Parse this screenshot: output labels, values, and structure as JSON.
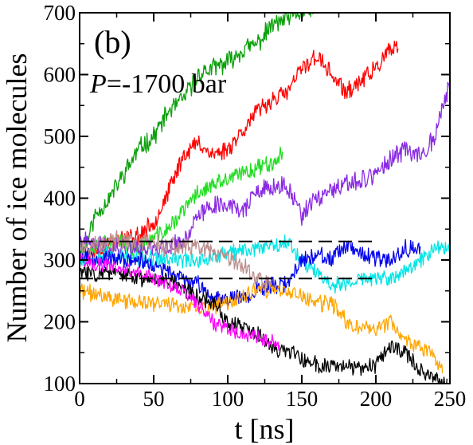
{
  "chart_data": {
    "type": "line",
    "panel_label": "(b)",
    "annotation": {
      "italic_part": "P",
      "rest": "=-1700 bar"
    },
    "xlabel": "t [ns]",
    "ylabel": "Number of ice molecules",
    "xlim": [
      0,
      250
    ],
    "ylim": [
      100,
      700
    ],
    "xticks": [
      "0",
      "50",
      "100",
      "150",
      "200",
      "250"
    ],
    "yticks": [
      "100",
      "200",
      "300",
      "400",
      "500",
      "600",
      "700"
    ],
    "xtick_values": [
      0,
      50,
      100,
      150,
      200,
      250
    ],
    "ytick_values": [
      100,
      200,
      300,
      400,
      500,
      600,
      700
    ],
    "grid": false,
    "series": [
      {
        "color": "#0aa00a",
        "noise": 14,
        "seed": 11,
        "points": [
          [
            0,
            300
          ],
          [
            5,
            330
          ],
          [
            10,
            370
          ],
          [
            20,
            400
          ],
          [
            30,
            440
          ],
          [
            40,
            480
          ],
          [
            50,
            500
          ],
          [
            60,
            540
          ],
          [
            70,
            560
          ],
          [
            80,
            600
          ],
          [
            90,
            610
          ],
          [
            100,
            620
          ],
          [
            110,
            640
          ],
          [
            120,
            650
          ],
          [
            130,
            680
          ],
          [
            140,
            690
          ],
          [
            150,
            700
          ],
          [
            155,
            705
          ],
          [
            165,
            710
          ]
        ]
      },
      {
        "color": "#ff0000",
        "noise": 13,
        "seed": 23,
        "points": [
          [
            0,
            300
          ],
          [
            20,
            330
          ],
          [
            40,
            340
          ],
          [
            50,
            360
          ],
          [
            60,
            410
          ],
          [
            70,
            470
          ],
          [
            80,
            490
          ],
          [
            90,
            470
          ],
          [
            100,
            480
          ],
          [
            110,
            510
          ],
          [
            120,
            540
          ],
          [
            130,
            560
          ],
          [
            140,
            570
          ],
          [
            145,
            590
          ],
          [
            150,
            610
          ],
          [
            160,
            630
          ],
          [
            170,
            600
          ],
          [
            180,
            570
          ],
          [
            190,
            590
          ],
          [
            200,
            610
          ],
          [
            210,
            640
          ],
          [
            215,
            640
          ]
        ]
      },
      {
        "color": "#22dd22",
        "noise": 13,
        "seed": 37,
        "points": [
          [
            0,
            310
          ],
          [
            20,
            330
          ],
          [
            40,
            320
          ],
          [
            60,
            350
          ],
          [
            70,
            380
          ],
          [
            80,
            410
          ],
          [
            90,
            420
          ],
          [
            100,
            430
          ],
          [
            110,
            440
          ],
          [
            120,
            450
          ],
          [
            130,
            460
          ],
          [
            137,
            470
          ]
        ]
      },
      {
        "color": "#8a2be2",
        "noise": 14,
        "seed": 41,
        "points": [
          [
            0,
            330
          ],
          [
            20,
            320
          ],
          [
            40,
            320
          ],
          [
            60,
            320
          ],
          [
            70,
            330
          ],
          [
            80,
            370
          ],
          [
            90,
            390
          ],
          [
            100,
            390
          ],
          [
            110,
            380
          ],
          [
            120,
            410
          ],
          [
            140,
            420
          ],
          [
            150,
            370
          ],
          [
            160,
            400
          ],
          [
            170,
            410
          ],
          [
            180,
            420
          ],
          [
            190,
            430
          ],
          [
            200,
            440
          ],
          [
            210,
            460
          ],
          [
            220,
            480
          ],
          [
            230,
            470
          ],
          [
            240,
            500
          ],
          [
            245,
            550
          ],
          [
            250,
            580
          ]
        ]
      },
      {
        "color": "#00e5e5",
        "noise": 12,
        "seed": 53,
        "points": [
          [
            0,
            300
          ],
          [
            20,
            310
          ],
          [
            40,
            300
          ],
          [
            60,
            300
          ],
          [
            80,
            300
          ],
          [
            100,
            310
          ],
          [
            120,
            320
          ],
          [
            140,
            330
          ],
          [
            150,
            300
          ],
          [
            160,
            280
          ],
          [
            170,
            260
          ],
          [
            180,
            260
          ],
          [
            190,
            270
          ],
          [
            200,
            270
          ],
          [
            210,
            270
          ],
          [
            220,
            280
          ],
          [
            230,
            300
          ],
          [
            240,
            320
          ],
          [
            250,
            320
          ]
        ]
      },
      {
        "color": "#0000ee",
        "noise": 12,
        "seed": 67,
        "points": [
          [
            0,
            310
          ],
          [
            20,
            300
          ],
          [
            40,
            300
          ],
          [
            60,
            280
          ],
          [
            80,
            260
          ],
          [
            90,
            240
          ],
          [
            100,
            240
          ],
          [
            110,
            240
          ],
          [
            120,
            250
          ],
          [
            130,
            260
          ],
          [
            140,
            260
          ],
          [
            150,
            300
          ],
          [
            160,
            310
          ],
          [
            170,
            300
          ],
          [
            180,
            320
          ],
          [
            190,
            310
          ],
          [
            200,
            300
          ],
          [
            210,
            300
          ],
          [
            220,
            320
          ],
          [
            230,
            320
          ]
        ]
      },
      {
        "color": "#ffa500",
        "noise": 12,
        "seed": 71,
        "points": [
          [
            0,
            250
          ],
          [
            20,
            240
          ],
          [
            40,
            230
          ],
          [
            60,
            230
          ],
          [
            80,
            220
          ],
          [
            100,
            230
          ],
          [
            120,
            250
          ],
          [
            140,
            250
          ],
          [
            150,
            240
          ],
          [
            160,
            230
          ],
          [
            170,
            230
          ],
          [
            180,
            200
          ],
          [
            190,
            190
          ],
          [
            200,
            190
          ],
          [
            210,
            200
          ],
          [
            220,
            170
          ],
          [
            230,
            160
          ],
          [
            240,
            140
          ],
          [
            245,
            120
          ]
        ]
      },
      {
        "color": "#000000",
        "noise": 12,
        "seed": 83,
        "points": [
          [
            0,
            280
          ],
          [
            20,
            280
          ],
          [
            40,
            270
          ],
          [
            60,
            270
          ],
          [
            80,
            240
          ],
          [
            90,
            230
          ],
          [
            100,
            200
          ],
          [
            110,
            190
          ],
          [
            120,
            180
          ],
          [
            130,
            160
          ],
          [
            140,
            150
          ],
          [
            150,
            140
          ],
          [
            160,
            130
          ],
          [
            170,
            130
          ],
          [
            180,
            130
          ],
          [
            190,
            120
          ],
          [
            200,
            130
          ],
          [
            210,
            160
          ],
          [
            220,
            150
          ],
          [
            230,
            120
          ],
          [
            240,
            110
          ],
          [
            248,
            100
          ]
        ]
      },
      {
        "color": "#bc8f8f",
        "noise": 14,
        "seed": 97,
        "points": [
          [
            0,
            320
          ],
          [
            20,
            330
          ],
          [
            40,
            330
          ],
          [
            60,
            320
          ],
          [
            80,
            320
          ],
          [
            90,
            310
          ],
          [
            100,
            300
          ],
          [
            110,
            290
          ],
          [
            120,
            270
          ],
          [
            130,
            260
          ]
        ]
      },
      {
        "color": "#ff00ff",
        "noise": 11,
        "seed": 101,
        "points": [
          [
            0,
            300
          ],
          [
            20,
            290
          ],
          [
            40,
            280
          ],
          [
            60,
            260
          ],
          [
            70,
            250
          ],
          [
            80,
            230
          ],
          [
            90,
            200
          ],
          [
            100,
            190
          ],
          [
            110,
            180
          ],
          [
            120,
            175
          ],
          [
            130,
            170
          ],
          [
            135,
            165
          ]
        ]
      }
    ],
    "reference_lines": [
      {
        "y": 330,
        "x_end": 200,
        "color": "#000000"
      },
      {
        "y": 270,
        "x_end": 200,
        "color": "#000000"
      }
    ]
  }
}
